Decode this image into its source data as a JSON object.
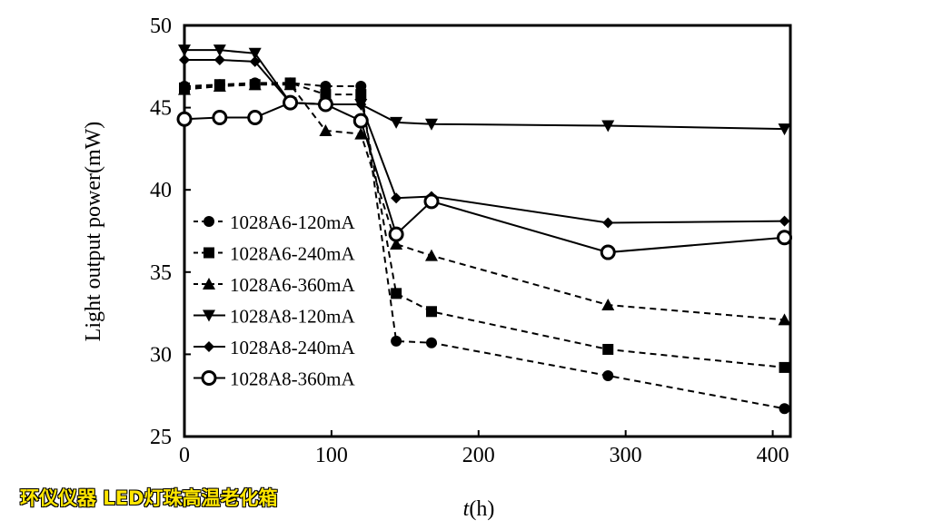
{
  "chart_data": {
    "type": "line",
    "title": "",
    "xlabel_italic": "t",
    "xlabel_unit": "(h)",
    "ylabel": "Light output power(mW)",
    "xlim": [
      0,
      412
    ],
    "ylim": [
      25,
      50
    ],
    "xticks": [
      0,
      100,
      200,
      300,
      400
    ],
    "yticks": [
      25,
      30,
      35,
      40,
      45,
      50
    ],
    "grid": false,
    "legend_position": "left-middle",
    "x": [
      0,
      24,
      48,
      72,
      96,
      120,
      144,
      168,
      288,
      408
    ],
    "series": [
      {
        "name": "1028A6-120mA",
        "marker": "circle-filled",
        "dash": true,
        "values": [
          46.3,
          46.4,
          46.5,
          46.5,
          46.3,
          46.3,
          30.8,
          30.7,
          28.7,
          26.7
        ]
      },
      {
        "name": "1028A6-240mA",
        "marker": "square",
        "dash": true,
        "values": [
          46.2,
          46.4,
          46.4,
          46.5,
          45.8,
          45.8,
          33.7,
          32.6,
          30.3,
          29.2
        ]
      },
      {
        "name": "1028A6-360mA",
        "marker": "triangle-up",
        "dash": true,
        "values": [
          46.1,
          46.3,
          46.4,
          46.4,
          43.6,
          43.4,
          36.7,
          36.0,
          33.0,
          32.1
        ]
      },
      {
        "name": "1028A8-120mA",
        "marker": "triangle-down",
        "dash": false,
        "values": [
          48.5,
          48.5,
          48.3,
          45.3,
          45.2,
          45.2,
          44.1,
          44.0,
          43.9,
          43.7
        ]
      },
      {
        "name": "1028A8-240mA",
        "marker": "diamond",
        "dash": false,
        "values": [
          47.9,
          47.9,
          47.8,
          45.3,
          45.2,
          45.2,
          39.5,
          39.6,
          38.0,
          38.1
        ]
      },
      {
        "name": "1028A8-360mA",
        "marker": "circle-open",
        "dash": false,
        "values": [
          44.3,
          44.4,
          44.4,
          45.3,
          45.2,
          44.2,
          37.3,
          39.3,
          36.2,
          37.1
        ]
      }
    ]
  },
  "watermark": "环仪仪器 LED灯珠高温老化箱"
}
